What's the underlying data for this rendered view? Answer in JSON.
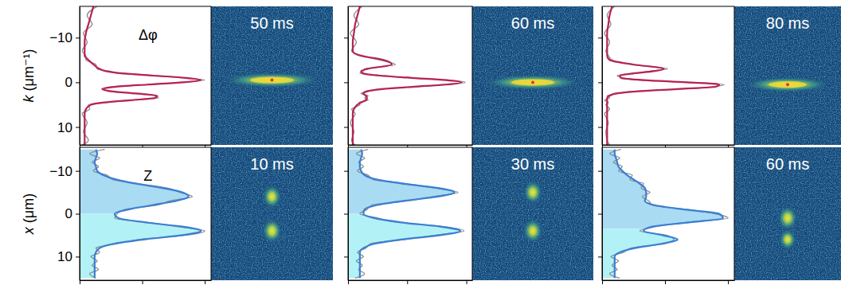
{
  "chart_data": [
    {
      "type": "line",
      "orientation": "horizontal",
      "title": "50 ms",
      "annotation": "Δφ",
      "x_label": "k (μm⁻¹)",
      "x": [
        -17,
        -15,
        -13,
        -11,
        -9,
        -7,
        -6,
        -5,
        -4,
        -3,
        -2.5,
        -2,
        -1.5,
        -1,
        -0.5,
        0,
        0.5,
        1,
        1.5,
        2,
        2.5,
        3,
        3.5,
        4,
        4.5,
        5,
        6,
        7,
        9,
        11,
        13,
        14
      ],
      "xlim": [
        -17,
        14
      ],
      "xticks": [
        {
          "value": -10,
          "label": "−10"
        },
        0,
        10
      ],
      "ylim": [
        0,
        1.05
      ],
      "yticks": [
        0,
        0.5,
        1
      ],
      "tick_labels": "x",
      "series": [
        {
          "color": "#8a8a8a",
          "values": [
            0.14,
            0.06,
            0.1,
            0.03,
            0.06,
            0.02,
            0.05,
            0.05,
            0.13,
            0.14,
            0.24,
            0.31,
            0.62,
            0.82,
            1.0,
            0.8,
            0.57,
            0.25,
            0.2,
            0.23,
            0.48,
            0.6,
            0.63,
            0.38,
            0.22,
            0.07,
            0.08,
            0.02,
            0.06,
            0.03,
            0.07,
            0.02
          ]
        },
        {
          "color": "#b82252",
          "values": [
            0.11,
            0.09,
            0.07,
            0.05,
            0.04,
            0.04,
            0.04,
            0.07,
            0.11,
            0.16,
            0.21,
            0.34,
            0.59,
            0.85,
            0.97,
            0.83,
            0.54,
            0.28,
            0.18,
            0.25,
            0.45,
            0.62,
            0.6,
            0.41,
            0.2,
            0.09,
            0.05,
            0.04,
            0.04,
            0.04,
            0.04,
            0.04
          ]
        }
      ]
    },
    {
      "type": "line",
      "orientation": "horizontal",
      "title": "60 ms",
      "x": [
        -17,
        -15,
        -13,
        -11,
        -9,
        -7,
        -6,
        -5,
        -4,
        -3,
        -2.5,
        -2,
        -1.5,
        -1,
        -0.5,
        0,
        0.5,
        1,
        1.5,
        2,
        2.5,
        3,
        3.5,
        4,
        4.5,
        5,
        6,
        7,
        9,
        11,
        13,
        14
      ],
      "xlim": [
        -17,
        14
      ],
      "xticks": [
        {
          "value": -10,
          "label": "−10"
        },
        0,
        10
      ],
      "ylim": [
        0,
        1.05
      ],
      "yticks": [
        0,
        0.5,
        1
      ],
      "tick_labels": false,
      "series": [
        {
          "color": "#8a8a8a",
          "values": [
            0.12,
            0.05,
            0.09,
            0.02,
            0.07,
            0.03,
            0.12,
            0.27,
            0.4,
            0.14,
            0.13,
            0.1,
            0.3,
            0.51,
            0.86,
            0.99,
            0.8,
            0.57,
            0.26,
            0.18,
            0.11,
            0.17,
            0.14,
            0.17,
            0.09,
            0.1,
            0.03,
            0.06,
            0.02,
            0.05,
            0.03,
            0.06
          ]
        },
        {
          "color": "#b82252",
          "values": [
            0.1,
            0.08,
            0.06,
            0.05,
            0.04,
            0.04,
            0.1,
            0.3,
            0.37,
            0.16,
            0.11,
            0.13,
            0.27,
            0.54,
            0.83,
            0.96,
            0.83,
            0.54,
            0.29,
            0.16,
            0.13,
            0.15,
            0.16,
            0.15,
            0.11,
            0.08,
            0.05,
            0.04,
            0.04,
            0.04,
            0.04,
            0.04
          ]
        }
      ]
    },
    {
      "type": "line",
      "orientation": "horizontal",
      "title": "80 ms",
      "x": [
        -17,
        -15,
        -13,
        -11,
        -9,
        -7,
        -6,
        -5,
        -4,
        -3,
        -2.5,
        -2,
        -1.5,
        -1,
        -0.5,
        0,
        0.5,
        1,
        1.5,
        2,
        2.5,
        3,
        3.5,
        4,
        4.5,
        5,
        6,
        7,
        9,
        11,
        13,
        14
      ],
      "xlim": [
        -17,
        14
      ],
      "xticks": [
        {
          "value": -10,
          "label": "−10"
        },
        0,
        10
      ],
      "ylim": [
        0,
        1.05
      ],
      "yticks": [
        0,
        0.5,
        1
      ],
      "tick_labels": false,
      "series": [
        {
          "color": "#8a8a8a",
          "values": [
            0.1,
            0.04,
            0.07,
            0.02,
            0.06,
            0.03,
            0.05,
            0.08,
            0.22,
            0.52,
            0.38,
            0.27,
            0.12,
            0.17,
            0.3,
            0.7,
            0.97,
            0.87,
            0.63,
            0.26,
            0.13,
            0.04,
            0.06,
            0.02,
            0.05,
            0.03,
            0.06,
            0.02,
            0.05,
            0.03,
            0.04,
            0.06
          ]
        },
        {
          "color": "#b82252",
          "values": [
            0.08,
            0.06,
            0.05,
            0.04,
            0.04,
            0.04,
            0.04,
            0.06,
            0.25,
            0.49,
            0.41,
            0.25,
            0.14,
            0.15,
            0.33,
            0.67,
            0.93,
            0.9,
            0.6,
            0.29,
            0.11,
            0.06,
            0.04,
            0.04,
            0.04,
            0.04,
            0.04,
            0.04,
            0.04,
            0.04,
            0.04,
            0.04
          ]
        }
      ]
    },
    {
      "type": "line",
      "orientation": "horizontal",
      "title": "10 ms",
      "annotation": "Z",
      "x_label": "x (μm)",
      "x": [
        -15,
        -14,
        -13,
        -12,
        -11,
        -10,
        -9,
        -8,
        -7,
        -6,
        -5,
        -4,
        -3,
        -2,
        -1,
        0,
        1,
        2,
        3,
        4,
        5,
        6,
        7,
        8,
        9,
        10,
        11,
        12,
        13,
        14,
        15
      ],
      "xlim": [
        -15.5,
        15.5
      ],
      "xticks": [
        {
          "value": -10,
          "label": "−10"
        },
        0,
        10
      ],
      "ylim": [
        0,
        1.05
      ],
      "yticks": [
        0,
        0.5,
        1
      ],
      "tick_labels": "x",
      "split": 0,
      "series": [
        {
          "color": "#8a8a8a",
          "values": [
            0.2,
            0.08,
            0.16,
            0.1,
            0.15,
            0.11,
            0.22,
            0.26,
            0.48,
            0.7,
            0.8,
            0.9,
            0.72,
            0.62,
            0.36,
            0.3,
            0.28,
            0.55,
            0.78,
            1.0,
            0.85,
            0.47,
            0.3,
            0.13,
            0.16,
            0.09,
            0.14,
            0.1,
            0.15,
            0.08,
            0.13
          ]
        },
        {
          "color": "#3b7fd4",
          "values": [
            0.13,
            0.14,
            0.13,
            0.12,
            0.13,
            0.14,
            0.19,
            0.29,
            0.45,
            0.66,
            0.82,
            0.87,
            0.77,
            0.58,
            0.39,
            0.28,
            0.31,
            0.52,
            0.82,
            0.97,
            0.82,
            0.51,
            0.27,
            0.16,
            0.13,
            0.12,
            0.12,
            0.12,
            0.12,
            0.12,
            0.12
          ]
        }
      ]
    },
    {
      "type": "line",
      "orientation": "horizontal",
      "title": "30 ms",
      "x": [
        -15,
        -14,
        -13,
        -12,
        -11,
        -10,
        -9,
        -8,
        -7,
        -6,
        -5,
        -4,
        -3,
        -2,
        -1,
        0,
        1,
        2,
        3,
        4,
        5,
        6,
        7,
        8,
        9,
        10,
        11,
        12,
        13,
        14,
        15
      ],
      "xlim": [
        -15.5,
        15.5
      ],
      "xticks": [
        {
          "value": -10,
          "label": "−10"
        },
        0,
        10
      ],
      "ylim": [
        0,
        1.05
      ],
      "yticks": [
        0,
        0.5,
        1
      ],
      "tick_labels": false,
      "split": 0,
      "series": [
        {
          "color": "#8a8a8a",
          "values": [
            0.17,
            0.07,
            0.14,
            0.09,
            0.13,
            0.08,
            0.17,
            0.21,
            0.5,
            0.73,
            0.93,
            0.72,
            0.5,
            0.2,
            0.16,
            0.1,
            0.25,
            0.42,
            0.81,
            0.98,
            0.74,
            0.48,
            0.19,
            0.15,
            0.08,
            0.13,
            0.07,
            0.12,
            0.09,
            0.14,
            0.06
          ]
        },
        {
          "color": "#3b7fd4",
          "values": [
            0.11,
            0.12,
            0.11,
            0.1,
            0.1,
            0.11,
            0.14,
            0.24,
            0.47,
            0.76,
            0.9,
            0.76,
            0.47,
            0.24,
            0.14,
            0.13,
            0.22,
            0.45,
            0.78,
            0.95,
            0.78,
            0.45,
            0.22,
            0.13,
            0.1,
            0.1,
            0.1,
            0.1,
            0.1,
            0.1,
            0.1
          ]
        }
      ]
    },
    {
      "type": "line",
      "orientation": "horizontal",
      "title": "60 ms",
      "x": [
        -15,
        -14,
        -13,
        -12,
        -11,
        -10,
        -9,
        -8,
        -7,
        -6,
        -5,
        -4,
        -3,
        -2,
        -1,
        0,
        1,
        2,
        3,
        4,
        5,
        6,
        7,
        8,
        9,
        10,
        11,
        12,
        13,
        14,
        15
      ],
      "xlim": [
        -15.5,
        15.5
      ],
      "xticks": [
        {
          "value": -10,
          "label": "−10"
        },
        0,
        10
      ],
      "ylim": [
        0,
        1.05
      ],
      "yticks": [
        0,
        0.5,
        1
      ],
      "tick_labels": false,
      "split": 3.5,
      "series": [
        {
          "color": "#8a8a8a",
          "values": [
            0.15,
            0.06,
            0.14,
            0.09,
            0.16,
            0.13,
            0.24,
            0.22,
            0.33,
            0.31,
            0.38,
            0.32,
            0.37,
            0.4,
            0.68,
            0.9,
            1.0,
            0.66,
            0.43,
            0.3,
            0.51,
            0.57,
            0.5,
            0.23,
            0.17,
            0.07,
            0.13,
            0.08,
            0.12,
            0.06,
            0.14
          ]
        },
        {
          "color": "#3b7fd4",
          "values": [
            0.1,
            0.1,
            0.11,
            0.12,
            0.13,
            0.16,
            0.2,
            0.25,
            0.3,
            0.34,
            0.35,
            0.35,
            0.34,
            0.42,
            0.65,
            0.93,
            0.96,
            0.7,
            0.4,
            0.33,
            0.48,
            0.6,
            0.47,
            0.26,
            0.14,
            0.1,
            0.1,
            0.1,
            0.1,
            0.1,
            0.1
          ]
        }
      ]
    }
  ]
}
